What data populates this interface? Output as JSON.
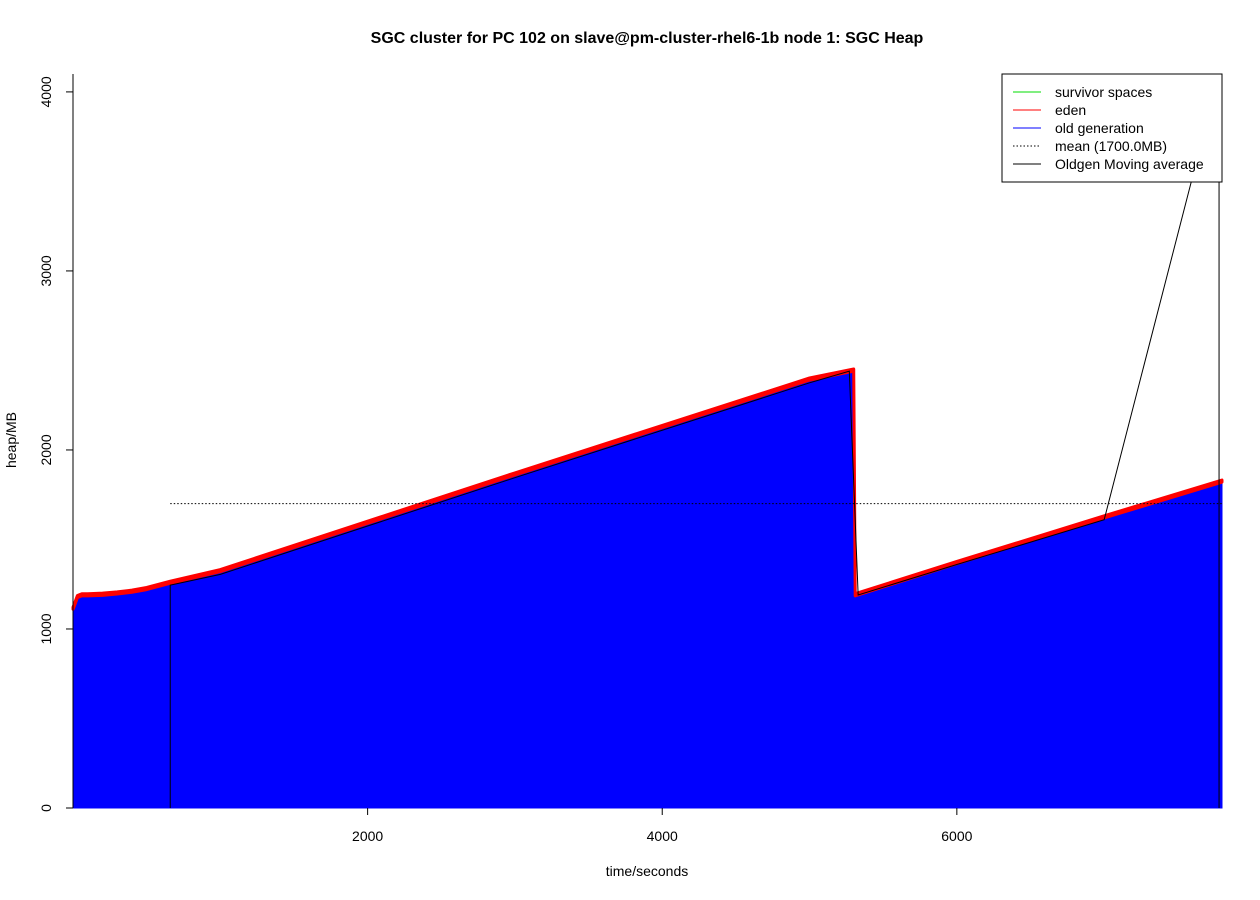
{
  "chart_data": {
    "type": "area",
    "title": "SGC cluster for PC 102 on slave@pm-cluster-rhel6-1b node 1: SGC Heap",
    "xlabel": "time/seconds",
    "ylabel": "heap/MB",
    "xlim": [
      0,
      7800
    ],
    "ylim": [
      0,
      4100
    ],
    "x_ticks": [
      {
        "value": 2000,
        "label": "2000"
      },
      {
        "value": 4000,
        "label": "4000"
      },
      {
        "value": 6000,
        "label": "6000"
      }
    ],
    "y_ticks": [
      {
        "value": 0,
        "label": "0"
      },
      {
        "value": 1000,
        "label": "1000"
      },
      {
        "value": 2000,
        "label": "2000"
      },
      {
        "value": 3000,
        "label": "3000"
      },
      {
        "value": 4000,
        "label": "4000"
      }
    ],
    "grid": false,
    "legend_position": "top-right",
    "legend": [
      {
        "label": "survivor spaces",
        "color": "#00dd00",
        "style": "solid"
      },
      {
        "label": "eden",
        "color": "#ff0000",
        "style": "solid"
      },
      {
        "label": "old generation",
        "color": "#0000ff",
        "style": "solid"
      },
      {
        "label": "mean (1700.0MB)",
        "color": "#000000",
        "style": "dotted"
      },
      {
        "label": "Oldgen Moving average",
        "color": "#000000",
        "style": "solid"
      }
    ],
    "series": [
      {
        "name": "old generation",
        "color": "#0000ff",
        "x": [
          0,
          10,
          30,
          60,
          100,
          200,
          300,
          400,
          500,
          660,
          1000,
          2000,
          3000,
          4000,
          5000,
          5300,
          5310,
          6000,
          7000,
          7800
        ],
        "y": [
          1110,
          1130,
          1175,
          1185,
          1185,
          1188,
          1195,
          1205,
          1220,
          1255,
          1320,
          1590,
          1860,
          2125,
          2390,
          2440,
          1185,
          1365,
          1620,
          1820
        ]
      },
      {
        "name": "eden",
        "color": "#ff0000",
        "x": [
          0,
          10,
          30,
          60,
          100,
          200,
          300,
          400,
          500,
          660,
          1000,
          2000,
          3000,
          4000,
          5000,
          5300,
          5310,
          6000,
          7000,
          7800
        ],
        "y": [
          12,
          12,
          12,
          12,
          12,
          12,
          12,
          12,
          12,
          12,
          12,
          12,
          12,
          12,
          12,
          12,
          12,
          12,
          12,
          12
        ]
      },
      {
        "name": "survivor spaces",
        "color": "#00dd00",
        "x": [
          0,
          7800
        ],
        "y": [
          0,
          0
        ]
      },
      {
        "name": "Oldgen Moving average",
        "color": "#000000",
        "x": [
          660,
          660,
          1000,
          2000,
          3000,
          4000,
          5000,
          5270,
          5330,
          6000,
          7000,
          7780,
          7780
        ],
        "y": [
          0,
          1245,
          1305,
          1575,
          1845,
          2110,
          2375,
          2440,
          1190,
          1360,
          1610,
          4100,
          0
        ]
      }
    ],
    "mean": 1700
  }
}
